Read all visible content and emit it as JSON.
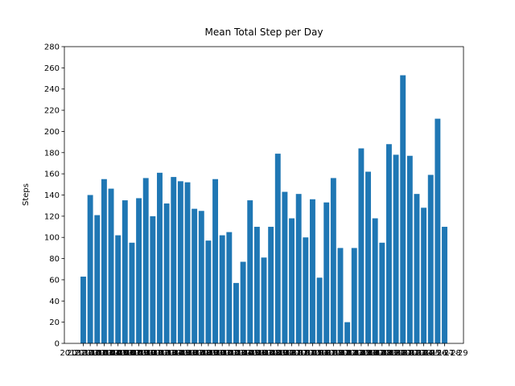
{
  "chart_data": {
    "type": "bar",
    "title": "Mean Total Step per Day",
    "y_label": "Steps",
    "categories": [
      "2012-10-02",
      "2012-10-03",
      "2012-10-04",
      "2012-10-05",
      "2012-10-06",
      "2012-10-07",
      "2012-10-09",
      "2012-10-10",
      "2012-10-11",
      "2012-10-12",
      "2012-10-13",
      "2012-10-14",
      "2012-10-15",
      "2012-10-16",
      "2012-10-17",
      "2012-10-18",
      "2012-10-19",
      "2012-10-20",
      "2012-10-21",
      "2012-10-22",
      "2012-10-23",
      "2012-10-24",
      "2012-10-25",
      "2012-10-26",
      "2012-10-27",
      "2012-10-28",
      "2012-10-29",
      "2012-10-30",
      "2012-10-31",
      "2012-11-02",
      "2012-11-03",
      "2012-11-05",
      "2012-11-06",
      "2012-11-07",
      "2012-11-08",
      "2012-11-11",
      "2012-11-12",
      "2012-11-13",
      "2012-11-15",
      "2012-11-16",
      "2012-11-17",
      "2012-11-18",
      "2012-11-19",
      "2012-11-20",
      "2012-11-21",
      "2012-11-22",
      "2012-11-23",
      "2012-11-24",
      "2012-11-25",
      "2012-11-26",
      "2012-11-27",
      "2012-11-28",
      "2012-11-29"
    ],
    "values": [
      63,
      140,
      121,
      155,
      146,
      102,
      135,
      95,
      137,
      156,
      120,
      161,
      132,
      157,
      153,
      152,
      127,
      125,
      97,
      155,
      102,
      105,
      57,
      77,
      135,
      110,
      81,
      110,
      179,
      143,
      118,
      141,
      100,
      136,
      62,
      133,
      156,
      90,
      20,
      90,
      184,
      162,
      118,
      95,
      188,
      178,
      253,
      177,
      141,
      128,
      159,
      212,
      110
    ],
    "color": "#1f77b4",
    "ylim": [
      0,
      280
    ],
    "yticks": [
      0,
      20,
      40,
      60,
      80,
      100,
      120,
      140,
      160,
      180,
      200,
      220,
      240,
      260,
      280
    ]
  }
}
